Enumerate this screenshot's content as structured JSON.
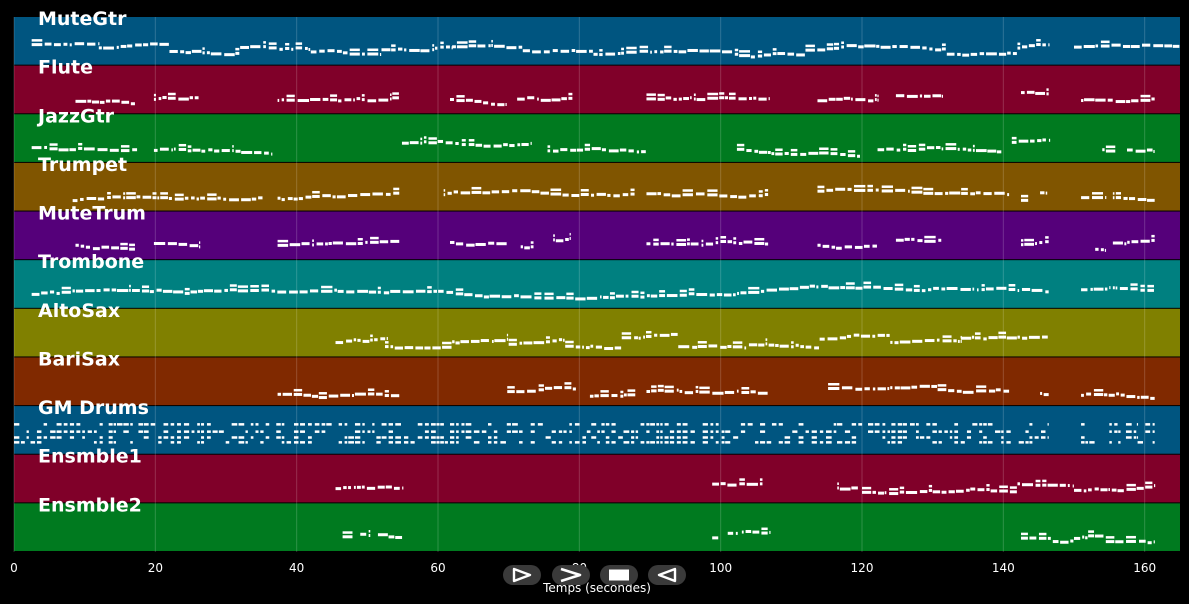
{
  "chart_data": {
    "type": "piano-roll",
    "xlabel": "Temps (secondes)",
    "xlim": [
      0,
      165
    ],
    "x_ticks": [
      0,
      20,
      40,
      60,
      80,
      100,
      120,
      140,
      160
    ],
    "grid": true,
    "tracks": [
      {
        "name": "MuteGtr",
        "color": "#005580",
        "segments": [
          [
            2.5,
            12
          ],
          [
            12,
            22
          ],
          [
            22,
            32
          ],
          [
            32,
            42
          ],
          [
            42,
            52
          ],
          [
            52,
            62
          ],
          [
            62,
            72
          ],
          [
            72,
            82
          ],
          [
            82,
            92
          ],
          [
            92,
            102
          ],
          [
            102,
            112
          ],
          [
            112,
            122
          ],
          [
            122,
            132
          ],
          [
            132,
            142
          ],
          [
            142,
            146.5
          ],
          [
            150,
            165
          ]
        ]
      },
      {
        "name": "Flute",
        "color": "#800029",
        "segments": [
          [
            8.7,
            17.2
          ],
          [
            19.8,
            26.2
          ],
          [
            37.3,
            54.6
          ],
          [
            61.7,
            69.8
          ],
          [
            71.2,
            79.1
          ],
          [
            89.5,
            106.8
          ],
          [
            113.7,
            122.2
          ],
          [
            124.8,
            131.3
          ],
          [
            142.5,
            146.5
          ],
          [
            151,
            161.5
          ]
        ]
      },
      {
        "name": "JazzGtr",
        "color": "#007a1f",
        "segments": [
          [
            2.5,
            17.5
          ],
          [
            19.8,
            36.5
          ],
          [
            54.9,
            73.1
          ],
          [
            75.5,
            89.5
          ],
          [
            102.3,
            119.8
          ],
          [
            122.2,
            139.8
          ],
          [
            141.2,
            146.5
          ],
          [
            154,
            156
          ],
          [
            157.5,
            161.5
          ]
        ]
      },
      {
        "name": "Trumpet",
        "color": "#805500",
        "segments": [
          [
            8.3,
            35.3
          ],
          [
            37.3,
            54.6
          ],
          [
            60.8,
            87.9
          ],
          [
            89.5,
            106.8
          ],
          [
            113.7,
            140.9
          ],
          [
            142.5,
            143.6
          ],
          [
            145.2,
            146.5
          ],
          [
            151,
            154.5
          ],
          [
            155.5,
            161.5
          ]
        ]
      },
      {
        "name": "MuteTrum",
        "color": "#55007a",
        "segments": [
          [
            8.7,
            17.2
          ],
          [
            19.8,
            26.2
          ],
          [
            37.3,
            54.6
          ],
          [
            61.7,
            69.8
          ],
          [
            71.7,
            73.6
          ],
          [
            76.3,
            78.7
          ],
          [
            89.5,
            106.8
          ],
          [
            113.7,
            122.2
          ],
          [
            124.8,
            131.3
          ],
          [
            142.5,
            146.5
          ],
          [
            153,
            154.5
          ],
          [
            155.5,
            161.5
          ]
        ]
      },
      {
        "name": "Trombone",
        "color": "#008080",
        "segments": [
          [
            2.5,
            146.5
          ],
          [
            151,
            155
          ],
          [
            155.5,
            161.5
          ]
        ]
      },
      {
        "name": "AltoSax",
        "color": "#808000",
        "segments": [
          [
            45.5,
            53
          ],
          [
            52.5,
            62
          ],
          [
            62,
            70
          ],
          [
            70,
            78
          ],
          [
            78,
            86
          ],
          [
            86,
            94
          ],
          [
            94,
            104
          ],
          [
            104,
            114
          ],
          [
            114,
            124
          ],
          [
            124,
            134
          ],
          [
            134,
            142
          ],
          [
            142,
            146.5
          ]
        ]
      },
      {
        "name": "BariSax",
        "color": "#802900",
        "segments": [
          [
            37.3,
            54.6
          ],
          [
            69.8,
            79.6
          ],
          [
            81.5,
            88
          ],
          [
            89.5,
            106.8
          ],
          [
            115.2,
            130.7
          ],
          [
            130.7,
            140.9
          ],
          [
            145.2,
            146.5
          ],
          [
            151,
            161.5
          ]
        ]
      },
      {
        "name": "GM Drums",
        "color": "#005580",
        "segments": [
          [
            0,
            146.5
          ],
          [
            151,
            153
          ],
          [
            155,
            159
          ],
          [
            159,
            161.5
          ]
        ]
      },
      {
        "name": "Ensmble1",
        "color": "#800029",
        "segments": [
          [
            45.5,
            55
          ],
          [
            98.8,
            106
          ],
          [
            116.5,
            119.5
          ],
          [
            120,
            130
          ],
          [
            130,
            142
          ],
          [
            142,
            150
          ],
          [
            150,
            161.5
          ]
        ]
      },
      {
        "name": "Ensmble2",
        "color": "#007a1f",
        "segments": [
          [
            46.5,
            48
          ],
          [
            49,
            50.5
          ],
          [
            51.5,
            53
          ],
          [
            53,
            55
          ],
          [
            98.8,
            99.8
          ],
          [
            101,
            102.5
          ],
          [
            103,
            107
          ],
          [
            142.5,
            147
          ],
          [
            147,
            150
          ],
          [
            150,
            152
          ],
          [
            152,
            154.5
          ],
          [
            154.5,
            161.5
          ]
        ]
      }
    ]
  },
  "transport": {
    "play_label": "play",
    "forward_label": "forward",
    "stop_label": "stop",
    "back_label": "back"
  }
}
